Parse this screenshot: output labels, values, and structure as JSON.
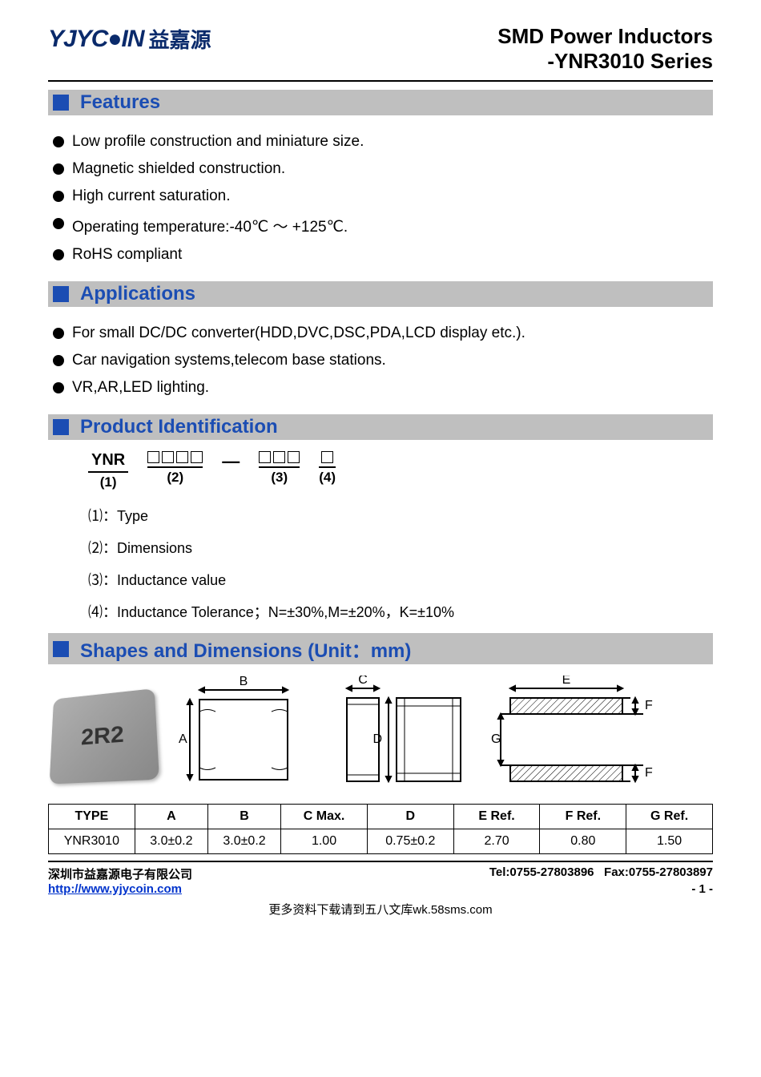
{
  "header": {
    "logo_text": "YJYC●IN",
    "logo_cn": "益嘉源",
    "title_line1": "SMD Power Inductors",
    "title_line2": "-YNR3010 Series"
  },
  "sections": {
    "features": {
      "title": "Features"
    },
    "applications": {
      "title": "Applications"
    },
    "product_id": {
      "title": "Product Identification"
    },
    "shapes": {
      "title": "Shapes and Dimensions (Unit：mm)"
    }
  },
  "features_items": [
    "Low profile construction and miniature size.",
    "Magnetic shielded construction.",
    "High current saturation.",
    "Operating temperature:-40℃ ～ +125℃.",
    "RoHS compliant"
  ],
  "applications_items": [
    "For small DC/DC converter(HDD,DVC,DSC,PDA,LCD display etc.).",
    "Car navigation systems,telecom base stations.",
    "VR,AR,LED lighting."
  ],
  "ident": {
    "part1_top": "YNR",
    "part1_bottom": "(1)",
    "part2_bottom": "(2)",
    "part3_bottom": "(3)",
    "part4_bottom": "(4)",
    "legend": [
      "⑴：Type",
      "⑵：Dimensions",
      "⑶：Inductance value",
      "⑷：Inductance Tolerance；N=±30%,M=±20%，K=±10%"
    ]
  },
  "shapes": {
    "chip_label": "2R2",
    "labels": {
      "A": "A",
      "B": "B",
      "C": "C",
      "D": "D",
      "E": "E",
      "F": "F",
      "G": "G"
    }
  },
  "dim_table": {
    "columns": [
      "TYPE",
      "A",
      "B",
      "C Max.",
      "D",
      "E Ref.",
      "F Ref.",
      "G Ref."
    ],
    "rows": [
      [
        "YNR3010",
        "3.0±0.2",
        "3.0±0.2",
        "1.00",
        "0.75±0.2",
        "2.70",
        "0.80",
        "1.50"
      ]
    ],
    "col_widths": [
      "13%",
      "11%",
      "11%",
      "13%",
      "13%",
      "13%",
      "13%",
      "13%"
    ]
  },
  "footer": {
    "company": "深圳市益嘉源电子有限公司",
    "tel": "Tel:0755-27803896",
    "fax": "Fax:0755-27803897",
    "url": "http://www.yjycoin.com",
    "page": "- 1 -",
    "bottom_note": "更多资料下载请到五八文库wk.58sms.com"
  },
  "colors": {
    "accent": "#1b4db3",
    "logo": "#0a2a6b",
    "bar_bg": "#bfbfbf",
    "link": "#0033cc"
  }
}
